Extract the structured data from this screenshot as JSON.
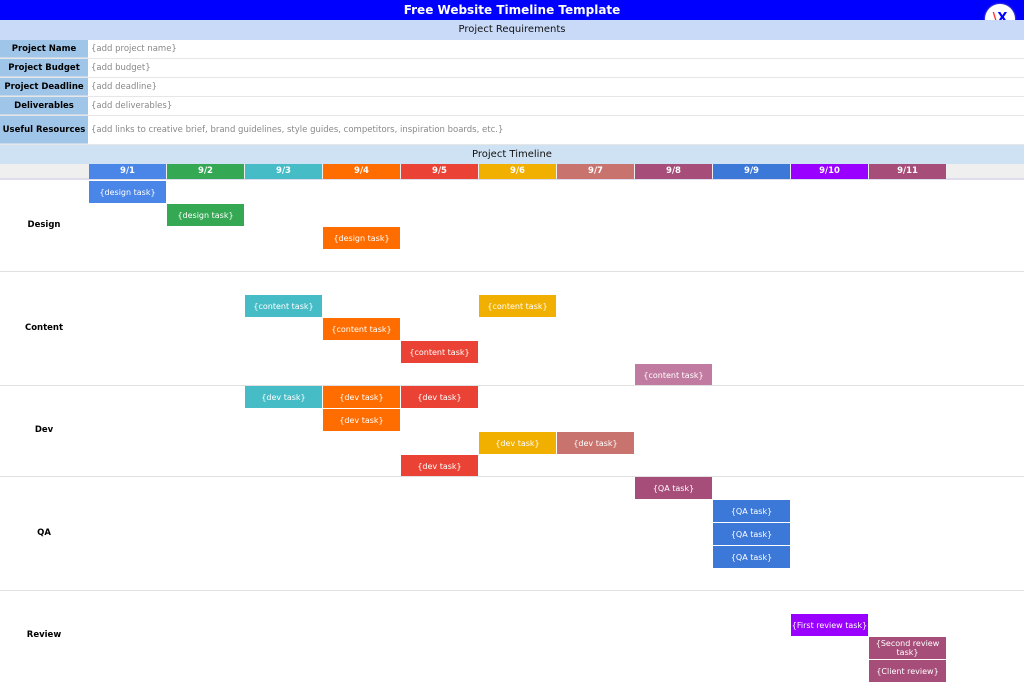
{
  "title": "Free Website Timeline Template",
  "requirements": {
    "heading": "Project Requirements",
    "rows": [
      {
        "label": "Project Name",
        "value": "{add project name}"
      },
      {
        "label": "Project Budget",
        "value": "{add budget}"
      },
      {
        "label": "Project Deadline",
        "value": "{add deadline}"
      },
      {
        "label": "Deliverables",
        "value": "{add deliverables}"
      },
      {
        "label": "Useful Resources",
        "value": "{add links to creative brief, brand guidelines, style guides, competitors, inspiration boards, etc.}"
      }
    ]
  },
  "timeline": {
    "heading": "Project Timeline",
    "dates": [
      {
        "label": "9/1",
        "color": "#4a86e8"
      },
      {
        "label": "9/2",
        "color": "#34a853"
      },
      {
        "label": "9/3",
        "color": "#46bdc6"
      },
      {
        "label": "9/4",
        "color": "#ff6d01"
      },
      {
        "label": "9/5",
        "color": "#ea4335"
      },
      {
        "label": "9/6",
        "color": "#f1b000"
      },
      {
        "label": "9/7",
        "color": "#c8736e"
      },
      {
        "label": "9/8",
        "color": "#a64d79"
      },
      {
        "label": "9/9",
        "color": "#3c78d8"
      },
      {
        "label": "9/10",
        "color": "#9900ff"
      },
      {
        "label": "9/11",
        "color": "#a64d79"
      }
    ],
    "groups": [
      {
        "label": "Design",
        "tasks": [
          {
            "label": "{design task}",
            "row": 0,
            "date": "9/1",
            "color": "#4a86e8"
          },
          {
            "label": "{design task}",
            "row": 1,
            "date": "9/2",
            "color": "#34a853"
          },
          {
            "label": "{design task}",
            "row": 2,
            "date": "9/4",
            "color": "#ff6d01"
          }
        ]
      },
      {
        "label": "Content",
        "tasks": [
          {
            "label": "{content task}",
            "row": 1,
            "date": "9/3",
            "color": "#46bdc6"
          },
          {
            "label": "{content task}",
            "row": 1,
            "date": "9/6",
            "color": "#f1b000"
          },
          {
            "label": "{content task}",
            "row": 2,
            "date": "9/4",
            "color": "#ff6d01"
          },
          {
            "label": "{content task}",
            "row": 3,
            "date": "9/5",
            "color": "#ea4335"
          },
          {
            "label": "{content task}",
            "row": 4,
            "date": "9/8",
            "color": "#c27ba0"
          }
        ]
      },
      {
        "label": "Dev",
        "tasks": [
          {
            "label": "{dev task}",
            "row": 0,
            "date": "9/3",
            "color": "#46bdc6"
          },
          {
            "label": "{dev task}",
            "row": 0,
            "date": "9/4",
            "color": "#ff6d01"
          },
          {
            "label": "{dev task}",
            "row": 0,
            "date": "9/5",
            "color": "#ea4335"
          },
          {
            "label": "{dev task}",
            "row": 1,
            "date": "9/4",
            "color": "#ff6d01"
          },
          {
            "label": "{dev task}",
            "row": 2,
            "date": "9/6",
            "color": "#f1b000"
          },
          {
            "label": "{dev task}",
            "row": 2,
            "date": "9/7",
            "color": "#c8736e"
          },
          {
            "label": "{dev task}",
            "row": 3,
            "date": "9/5",
            "color": "#ea4335"
          }
        ]
      },
      {
        "label": "QA",
        "tasks": [
          {
            "label": "{QA task}",
            "row": 0,
            "date": "9/8",
            "color": "#a64d79"
          },
          {
            "label": "{QA task}",
            "row": 1,
            "date": "9/9",
            "color": "#3c78d8"
          },
          {
            "label": "{QA task}",
            "row": 2,
            "date": "9/9",
            "color": "#3c78d8"
          },
          {
            "label": "{QA task}",
            "row": 3,
            "date": "9/9",
            "color": "#3c78d8"
          }
        ]
      },
      {
        "label": "Review",
        "tasks": [
          {
            "label": "{First review task}",
            "row": 1,
            "date": "9/10",
            "color": "#9900ff"
          },
          {
            "label": "{Second review task}",
            "row": 2,
            "date": "9/11",
            "color": "#a64d79"
          },
          {
            "label": "{Client review}",
            "row": 3,
            "date": "9/11",
            "color": "#a64d79"
          }
        ]
      }
    ]
  },
  "logo_text": "AX"
}
